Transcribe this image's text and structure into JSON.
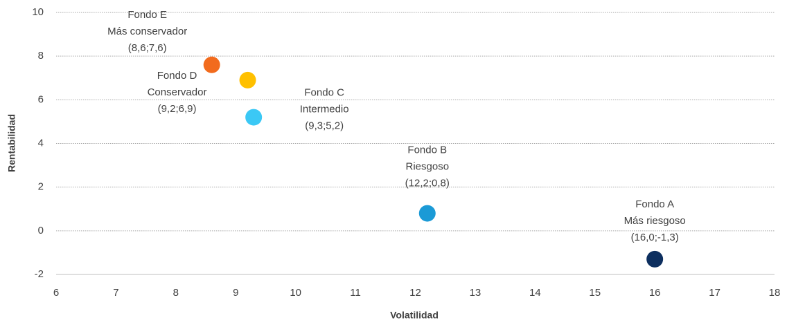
{
  "chart_data": {
    "type": "scatter",
    "x_label": "Volatilidad",
    "y_label": "Rentabilidad",
    "x": [
      8.6,
      9.2,
      9.3,
      12.2,
      16.0
    ],
    "values": [
      7.6,
      6.9,
      5.2,
      0.8,
      -1.3
    ],
    "colors": [
      "#f26b1d",
      "#ffc000",
      "#3bc8f5",
      "#1b9ad6",
      "#0d2f5f"
    ],
    "annotations": [
      [
        "Fondo E",
        "Más conservador"
      ],
      [
        "Fondo D",
        "Conservador"
      ],
      [
        "Fondo C",
        "Intermedio"
      ],
      [
        "Fondo B",
        "Riesgoso"
      ],
      [
        "Fondo A",
        "Más riesgoso"
      ]
    ],
    "value_labels": [
      "(8,6;7,6)",
      "(9,2;6,9)",
      "(9,3;5,2)",
      "(12,2;0,8)",
      "(16,0;-1,3)"
    ],
    "xlim": [
      6,
      18
    ],
    "xticks": [
      6,
      7,
      8,
      9,
      10,
      11,
      12,
      13,
      14,
      15,
      16,
      17,
      18
    ],
    "ylim": [
      -2,
      10
    ],
    "yticks": [
      -2,
      0,
      2,
      4,
      6,
      8,
      10
    ],
    "grid": true
  }
}
